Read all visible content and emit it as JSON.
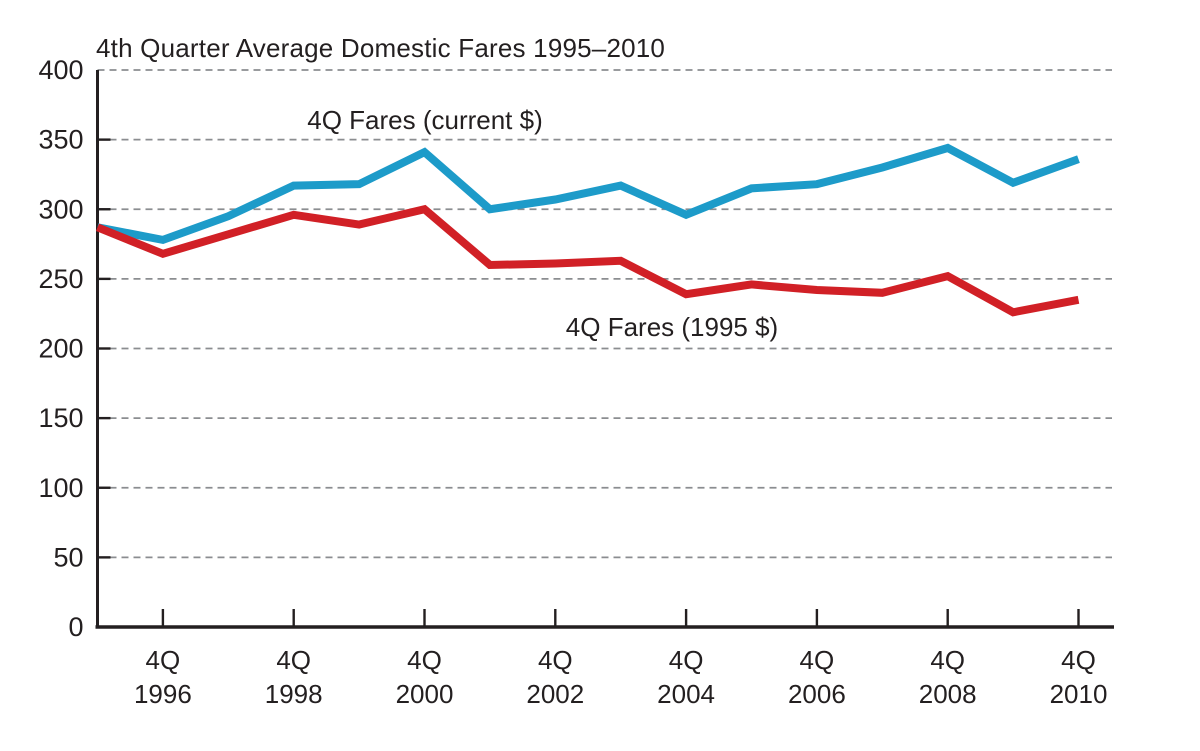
{
  "chart_data": {
    "type": "line",
    "title": "4th Quarter Average Domestic Fares 1995–2010",
    "x": [
      1995,
      1996,
      1997,
      1998,
      1999,
      2000,
      2001,
      2002,
      2003,
      2004,
      2005,
      2006,
      2007,
      2008,
      2009,
      2010
    ],
    "series": [
      {
        "name": "4Q Fares (current $)",
        "label": "4Q Fares (current $)",
        "color": "#1d9bc9",
        "values": [
          287,
          278,
          295,
          317,
          318,
          341,
          300,
          307,
          317,
          296,
          315,
          318,
          330,
          344,
          319,
          336
        ]
      },
      {
        "name": "4Q Fares (1995 $)",
        "label": "4Q Fares (1995 $)",
        "color": "#d12026",
        "values": [
          287,
          268,
          282,
          296,
          289,
          300,
          260,
          261,
          263,
          239,
          246,
          242,
          240,
          252,
          226,
          235
        ]
      }
    ],
    "ylim": [
      0,
      400
    ],
    "yticks": [
      0,
      50,
      100,
      150,
      200,
      250,
      300,
      350,
      400
    ],
    "xticks": [
      1996,
      1998,
      2000,
      2002,
      2004,
      2006,
      2008,
      2010
    ],
    "xtick_prefix": "4Q",
    "grid": "horizontal-dashed",
    "legend_position": "inline-annotations",
    "colors": {
      "current_series": "#1d9bc9",
      "constant_1995_series": "#d12026",
      "axis": "#231f20",
      "gridline": "#8b8d90",
      "text": "#231f20"
    }
  }
}
